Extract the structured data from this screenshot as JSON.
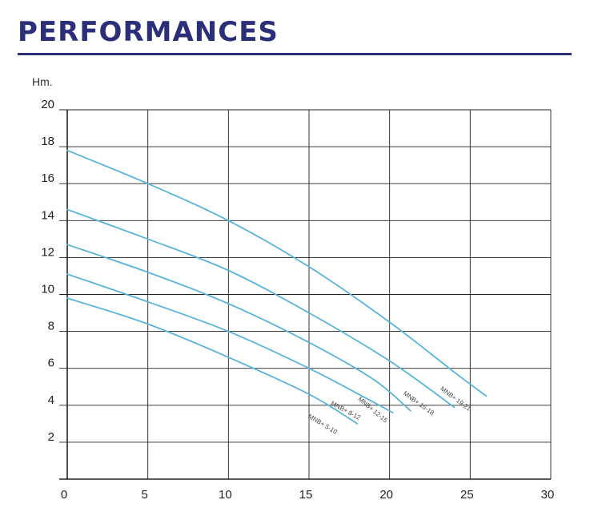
{
  "page": {
    "heading": "PERFORMANCES"
  },
  "colors": {
    "heading": "#2b2f7a",
    "rule": "#2b2f7a",
    "grid": "#222222",
    "curve": "#5ab4da"
  },
  "chart_data": {
    "type": "line",
    "title": "",
    "xlabel": "",
    "ylabel": "Hm.",
    "xlim": [
      0,
      30
    ],
    "ylim": [
      0,
      20
    ],
    "grid": true,
    "legend": "none",
    "xticks": [
      0,
      5,
      10,
      15,
      20,
      25,
      30
    ],
    "yticks": [
      2,
      4,
      6,
      8,
      10,
      12,
      14,
      16,
      18,
      20
    ],
    "series": [
      {
        "name": "MNB+ 19-21",
        "points": [
          [
            0,
            17.8
          ],
          [
            5,
            16.0
          ],
          [
            10,
            14.0
          ],
          [
            15,
            11.5
          ],
          [
            20,
            8.5
          ],
          [
            24,
            5.8
          ],
          [
            26,
            4.5
          ]
        ]
      },
      {
        "name": "MNB+ 15-18",
        "points": [
          [
            0,
            14.6
          ],
          [
            5,
            13.0
          ],
          [
            10,
            11.3
          ],
          [
            15,
            9.0
          ],
          [
            20,
            6.4
          ],
          [
            24,
            3.9
          ]
        ]
      },
      {
        "name": "MNB+ 12-15",
        "points": [
          [
            0,
            12.7
          ],
          [
            5,
            11.2
          ],
          [
            10,
            9.5
          ],
          [
            15,
            7.4
          ],
          [
            19,
            5.4
          ],
          [
            21.3,
            3.7
          ]
        ]
      },
      {
        "name": "MNB+ 8-12",
        "points": [
          [
            0,
            11.1
          ],
          [
            5,
            9.6
          ],
          [
            10,
            8.0
          ],
          [
            15,
            6.0
          ],
          [
            18.5,
            4.4
          ],
          [
            20.2,
            3.6
          ]
        ]
      },
      {
        "name": "MNB+ 5-10",
        "points": [
          [
            0,
            9.8
          ],
          [
            5,
            8.4
          ],
          [
            10,
            6.6
          ],
          [
            15,
            4.6
          ],
          [
            18,
            3.0
          ]
        ]
      }
    ]
  }
}
